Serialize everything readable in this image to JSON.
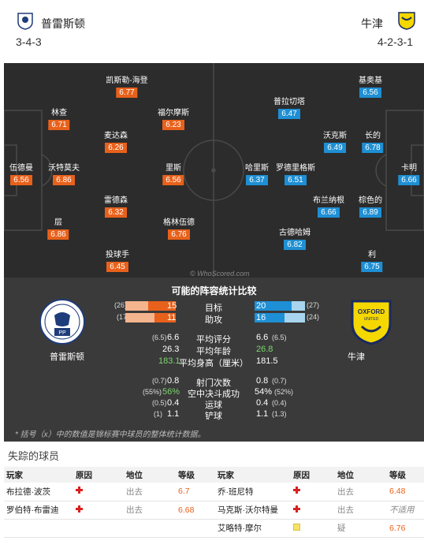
{
  "header": {
    "home_name": "普雷斯顿",
    "home_formation": "3-4-3",
    "away_name": "牛津",
    "away_formation": "4-2-3-1"
  },
  "pitch": {
    "watermark": "© WhoScored.com",
    "home_players": [
      {
        "name": "凯斯勒-海登",
        "rating": "6.77"
      },
      {
        "name": "林查",
        "rating": "6.71"
      },
      {
        "name": "福尔摩斯",
        "rating": "6.23"
      },
      {
        "name": "麦达森",
        "rating": "6.26"
      },
      {
        "name": "伍德曼",
        "rating": "6.56"
      },
      {
        "name": "沃特莫夫",
        "rating": "6.86"
      },
      {
        "name": "里斯",
        "rating": "6.56"
      },
      {
        "name": "雷德森",
        "rating": "6.32"
      },
      {
        "name": "层",
        "rating": "6.86"
      },
      {
        "name": "格林伍德",
        "rating": "6.76"
      },
      {
        "name": "投球手",
        "rating": "6.45"
      }
    ],
    "away_players": [
      {
        "name": "基奥基",
        "rating": "6.56"
      },
      {
        "name": "普拉切塔",
        "rating": "6.47"
      },
      {
        "name": "沃克斯",
        "rating": "6.49"
      },
      {
        "name": "长的",
        "rating": "6.78"
      },
      {
        "name": "哈里斯",
        "rating": "6.37"
      },
      {
        "name": "罗德里格斯",
        "rating": "6.51"
      },
      {
        "name": "卡明",
        "rating": "6.66"
      },
      {
        "name": "布兰纳根",
        "rating": "6.66"
      },
      {
        "name": "棕色的",
        "rating": "6.89"
      },
      {
        "name": "古德哈姆",
        "rating": "6.82"
      },
      {
        "name": "利",
        "rating": "6.75"
      }
    ]
  },
  "stats": {
    "title": "可能的阵容统计比较",
    "home_label": "普雷斯顿",
    "away_label": "牛津",
    "rows_bar": [
      {
        "label": "目标",
        "home": "15",
        "home_season": "(26)",
        "away": "20",
        "away_season": "(27)",
        "home_frac": 0.55,
        "away_frac": 0.74
      },
      {
        "label": "助攻",
        "home": "11",
        "home_season": "(17)",
        "away": "16",
        "away_season": "(24)",
        "home_frac": 0.42,
        "away_frac": 0.6
      }
    ],
    "rows_plain": [
      {
        "label": "平均评分",
        "home": "6.6",
        "home_season": "(6.5)",
        "away": "6.6",
        "away_season": "(6.5)"
      },
      {
        "label": "平均年龄",
        "home": "26.3",
        "home_season": "",
        "away": "26.8",
        "away_season": ""
      },
      {
        "label": "平均身高（厘米）",
        "home": "183.1",
        "home_season": "",
        "away": "181.5",
        "away_season": ""
      },
      {
        "label": "射门次数",
        "home": "0.8",
        "home_season": "(0.7)",
        "away": "0.8",
        "away_season": "(0.7)"
      },
      {
        "label": "空中决斗成功",
        "home": "56%",
        "home_season": "(55%)",
        "away": "54%",
        "away_season": "(52%)"
      },
      {
        "label": "运球",
        "home": "0.4",
        "home_season": "(0.5)",
        "away": "0.4",
        "away_season": "(0.4)"
      },
      {
        "label": "铲球",
        "home": "1.1",
        "home_season": "(1)",
        "away": "1.1",
        "away_season": "(1.3)"
      }
    ],
    "footnote": "* 括号（x）中的数值是锦标赛中球员的整体统计数据。"
  },
  "missing": {
    "title": "失踪的球员",
    "headers": [
      "玩家",
      "原因",
      "地位",
      "等级",
      "玩家",
      "原因",
      "地位",
      "等级"
    ],
    "rows": [
      {
        "h_player": "布拉德·波茨",
        "h_status": "出去",
        "h_rating": "6.7",
        "a_player": "乔·班尼特",
        "a_status": "出去",
        "a_rating": "6.48",
        "a_icon": "red"
      },
      {
        "h_player": "罗伯特·布雷迪",
        "h_status": "出去",
        "h_rating": "6.68",
        "a_player": "马克斯·沃尔特曼",
        "a_status": "出去",
        "a_rating": "不适用",
        "a_icon": "red"
      },
      {
        "h_player": "",
        "h_status": "",
        "h_rating": "",
        "a_player": "艾略特·摩尔",
        "a_status": "疑",
        "a_rating": "6.76",
        "a_icon": "yellow"
      }
    ]
  }
}
